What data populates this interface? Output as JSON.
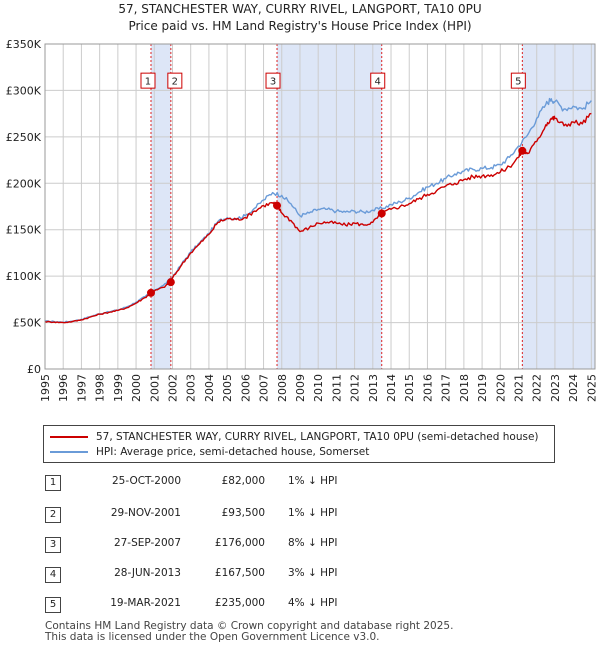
{
  "chart_data": {
    "type": "line",
    "title": "57, STANCHESTER WAY, CURRY RIVEL, LANGPORT, TA10 0PU",
    "subtitle": "Price paid vs. HM Land Registry's House Price Index (HPI)",
    "xlabel": "",
    "ylabel": "",
    "xlim": [
      1995,
      2025.2
    ],
    "ylim": [
      0,
      350000
    ],
    "yticks": [
      0,
      50000,
      100000,
      150000,
      200000,
      250000,
      300000,
      350000
    ],
    "ytick_labels": [
      "£0",
      "£50K",
      "£100K",
      "£150K",
      "£200K",
      "£250K",
      "£300K",
      "£350K"
    ],
    "xticks": [
      1995,
      1996,
      1997,
      1998,
      1999,
      2000,
      2001,
      2002,
      2003,
      2004,
      2005,
      2006,
      2007,
      2008,
      2009,
      2010,
      2011,
      2012,
      2013,
      2014,
      2015,
      2016,
      2017,
      2018,
      2019,
      2020,
      2021,
      2022,
      2023,
      2024,
      2025
    ],
    "grid": true,
    "series": [
      {
        "name": "57, STANCHESTER WAY, CURRY RIVEL, LANGPORT, TA10 0PU (semi-detached house)",
        "color": "#cc0000",
        "x": [
          1995.0,
          1995.5,
          1996.0,
          1996.5,
          1997.0,
          1997.5,
          1998.0,
          1998.5,
          1999.0,
          1999.5,
          2000.0,
          2000.5,
          2000.82,
          2001.0,
          2001.5,
          2001.91,
          2002.0,
          2002.5,
          2003.0,
          2003.5,
          2004.0,
          2004.5,
          2005.0,
          2005.5,
          2006.0,
          2006.5,
          2007.0,
          2007.5,
          2007.74,
          2008.0,
          2008.5,
          2009.0,
          2009.5,
          2010.0,
          2010.5,
          2011.0,
          2011.5,
          2012.0,
          2012.5,
          2013.0,
          2013.49,
          2013.5,
          2014.0,
          2014.5,
          2015.0,
          2015.5,
          2016.0,
          2016.5,
          2017.0,
          2017.5,
          2018.0,
          2018.5,
          2019.0,
          2019.5,
          2020.0,
          2020.5,
          2021.0,
          2021.21,
          2021.5,
          2022.0,
          2022.5,
          2022.8,
          2023.0,
          2023.5,
          2024.0,
          2024.5,
          2025.0
        ],
        "values": [
          51000,
          50500,
          50000,
          51000,
          53000,
          56000,
          59000,
          61000,
          63000,
          66000,
          71000,
          77000,
          82000,
          84000,
          88000,
          93500,
          98000,
          112000,
          125000,
          135000,
          145000,
          158000,
          162000,
          161000,
          163000,
          170000,
          176000,
          179000,
          176000,
          168000,
          160000,
          148000,
          152000,
          157000,
          158000,
          157000,
          155000,
          157000,
          155000,
          158000,
          167500,
          168000,
          172000,
          175000,
          178000,
          183000,
          188000,
          192000,
          197000,
          200000,
          204000,
          207000,
          208000,
          209000,
          212000,
          218000,
          228000,
          235000,
          232000,
          245000,
          263000,
          270000,
          270000,
          262000,
          266000,
          264000,
          275000
        ]
      },
      {
        "name": "HPI: Average price, semi-detached house, Somerset",
        "color": "#6a9bd8",
        "x": [
          1995.0,
          1995.5,
          1996.0,
          1996.5,
          1997.0,
          1997.5,
          1998.0,
          1998.5,
          1999.0,
          1999.5,
          2000.0,
          2000.5,
          2001.0,
          2001.5,
          2002.0,
          2002.5,
          2003.0,
          2003.5,
          2004.0,
          2004.5,
          2005.0,
          2005.5,
          2006.0,
          2006.5,
          2007.0,
          2007.5,
          2008.0,
          2008.5,
          2009.0,
          2009.5,
          2010.0,
          2010.5,
          2011.0,
          2011.5,
          2012.0,
          2012.5,
          2013.0,
          2013.5,
          2014.0,
          2014.5,
          2015.0,
          2015.5,
          2016.0,
          2016.5,
          2017.0,
          2017.5,
          2018.0,
          2018.5,
          2019.0,
          2019.5,
          2020.0,
          2020.5,
          2021.0,
          2021.5,
          2022.0,
          2022.5,
          2022.8,
          2023.0,
          2023.5,
          2024.0,
          2024.5,
          2025.0
        ],
        "values": [
          51500,
          51000,
          50500,
          51500,
          53500,
          56500,
          59500,
          61500,
          63500,
          67000,
          72000,
          78000,
          85000,
          90000,
          99000,
          113000,
          126000,
          136000,
          146000,
          159000,
          163000,
          162000,
          165000,
          173000,
          182000,
          190000,
          187000,
          178000,
          165000,
          168000,
          172000,
          172000,
          170000,
          169000,
          170000,
          169000,
          171000,
          173000,
          177000,
          180000,
          184000,
          190000,
          196000,
          200000,
          205000,
          210000,
          213000,
          215000,
          216000,
          217000,
          220000,
          228000,
          240000,
          252000,
          270000,
          285000,
          291000,
          288000,
          280000,
          283000,
          280000,
          289000
        ]
      }
    ],
    "transactions": [
      {
        "num": "1",
        "date": "25-OCT-2000",
        "year": 2000.82,
        "price": 82000,
        "price_label": "£82,000",
        "hpi": "1% ↓ HPI"
      },
      {
        "num": "2",
        "date": "29-NOV-2001",
        "year": 2001.91,
        "price": 93500,
        "price_label": "£93,500",
        "hpi": "1% ↓ HPI"
      },
      {
        "num": "3",
        "date": "27-SEP-2007",
        "year": 2007.74,
        "price": 176000,
        "price_label": "£176,000",
        "hpi": "8% ↓ HPI"
      },
      {
        "num": "4",
        "date": "28-JUN-2013",
        "year": 2013.49,
        "price": 167500,
        "price_label": "£167,500",
        "hpi": "3% ↓ HPI"
      },
      {
        "num": "5",
        "date": "19-MAR-2021",
        "year": 2021.21,
        "price": 235000,
        "price_label": "£235,000",
        "hpi": "4% ↓ HPI"
      }
    ],
    "shaded_ranges": [
      [
        2000.82,
        2001.91
      ],
      [
        2007.74,
        2013.49
      ],
      [
        2021.21,
        2025.2
      ]
    ],
    "marker_label_value": 310000,
    "legend_position": "bottom"
  },
  "legend": {
    "item1": "57, STANCHESTER WAY, CURRY RIVEL, LANGPORT, TA10 0PU (semi-detached house)",
    "item2": "HPI: Average price, semi-detached house, Somerset"
  },
  "footer": {
    "line1": "Contains HM Land Registry data © Crown copyright and database right 2025.",
    "line2": "This data is licensed under the Open Government Licence v3.0."
  },
  "colors": {
    "price_line": "#cc0000",
    "hpi_line": "#6a9bd8",
    "shade": "#dde6f7",
    "grid": "#cccccc"
  }
}
